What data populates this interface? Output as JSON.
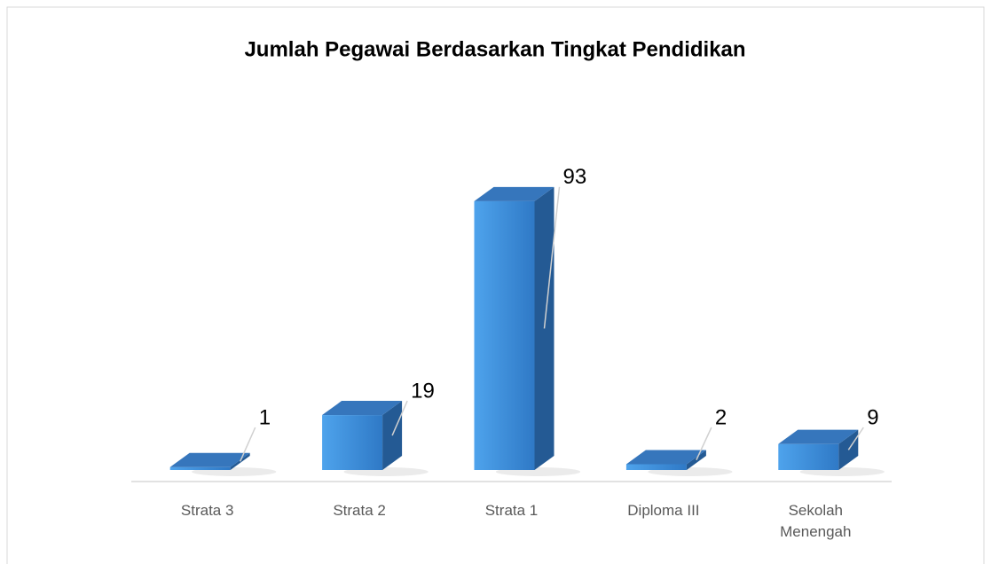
{
  "chart_data": {
    "type": "bar3d",
    "title": "Jumlah Pegawai Berdasarkan Tingkat Pendidikan",
    "categories": [
      "Strata 3",
      "Strata 2",
      "Strata 1",
      "Diploma III",
      "Sekolah Menengah"
    ],
    "values": [
      1,
      19,
      93,
      2,
      9
    ],
    "color": "#3f8ddb",
    "ylim": [
      0,
      100
    ]
  }
}
